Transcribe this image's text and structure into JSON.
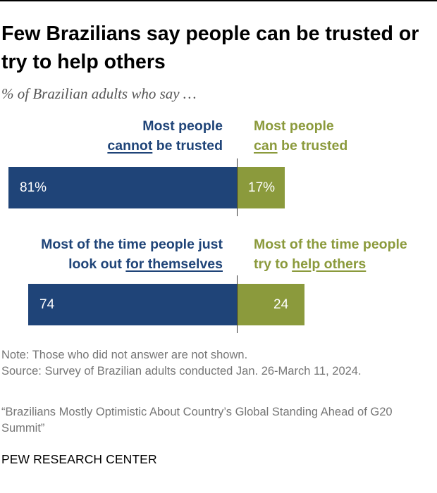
{
  "title": "Few Brazilians say people can be trusted or try to help others",
  "subtitle": "% of Brazilian adults who say …",
  "colors": {
    "left": "#1f4478",
    "right": "#8b9a3c"
  },
  "chart_data": {
    "type": "bar",
    "orientation": "horizontal-diverging",
    "title": "Few Brazilians say people can be trusted or try to help others",
    "subtitle": "% of Brazilian adults who say …",
    "rows": [
      {
        "left_label": {
          "before": "Most people",
          "underlined": "cannot",
          "after": " be trusted"
        },
        "right_label": {
          "line1": "Most people",
          "underlined": "can",
          "after": " be trusted"
        },
        "left_value": 81,
        "right_value": 17,
        "left_value_label": "81%",
        "right_value_label": "17%"
      },
      {
        "left_label": {
          "before": "Most of the time people just",
          "before2": "look out ",
          "underlined": "for themselves",
          "after": ""
        },
        "right_label": {
          "line1": "Most of the time people",
          "before": "try to ",
          "underlined": "help others",
          "after": ""
        },
        "left_value": 74,
        "right_value": 24,
        "left_value_label": "74",
        "right_value_label": "24"
      }
    ],
    "unit": "%"
  },
  "notes": {
    "note": "Note: Those who did not answer are not shown.",
    "source": "Source: Survey of Brazilian adults conducted Jan. 26-March 11, 2024.",
    "report": "“Brazilians Mostly Optimistic About Country’s Global Standing Ahead of G20 Summit”"
  },
  "brand": "PEW RESEARCH CENTER"
}
